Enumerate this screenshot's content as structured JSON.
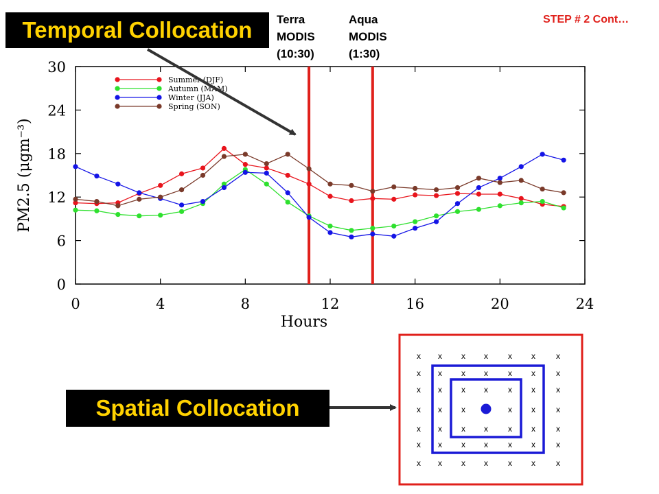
{
  "header": {
    "temporal_title": "Temporal Collocation",
    "spatial_title": "Spatial Collocation",
    "step": "STEP # 2 Cont…",
    "terra": [
      "Terra",
      "MODIS",
      "(10:30)"
    ],
    "aqua": [
      "Aqua",
      "MODIS",
      "(1:30)"
    ]
  },
  "chart_data": {
    "type": "line",
    "xlabel": "Hours",
    "ylabel": "PM2.5 (μgm⁻³)",
    "xlim": [
      0,
      24
    ],
    "ylim": [
      0,
      30
    ],
    "xticks": [
      0,
      4,
      8,
      12,
      16,
      20,
      24
    ],
    "yticks": [
      0,
      6,
      12,
      18,
      24,
      30
    ],
    "legend_position": "top-left",
    "x": [
      0,
      1,
      2,
      3,
      4,
      5,
      6,
      7,
      8,
      9,
      10,
      11,
      12,
      13,
      14,
      15,
      16,
      17,
      18,
      19,
      20,
      21,
      22,
      23
    ],
    "series": [
      {
        "name": "Summer (DJF)",
        "color": "#e8141c",
        "values": [
          11.2,
          11.1,
          11.2,
          12.5,
          13.6,
          15.2,
          16.0,
          18.7,
          16.5,
          16.0,
          15.0,
          13.8,
          12.1,
          11.5,
          11.8,
          11.7,
          12.3,
          12.2,
          12.5,
          12.4,
          12.4,
          11.8,
          11.0,
          10.7
        ]
      },
      {
        "name": "Autumn (MAM)",
        "color": "#2ee02e",
        "values": [
          10.2,
          10.1,
          9.6,
          9.4,
          9.5,
          10.0,
          11.1,
          13.8,
          15.8,
          13.8,
          11.3,
          9.4,
          8.0,
          7.4,
          7.7,
          8.0,
          8.6,
          9.4,
          10.0,
          10.3,
          10.8,
          11.2,
          11.4,
          10.5
        ]
      },
      {
        "name": "Winter (JJA)",
        "color": "#1414e6",
        "values": [
          16.2,
          14.9,
          13.8,
          12.6,
          11.8,
          10.9,
          11.4,
          13.3,
          15.4,
          15.3,
          12.6,
          9.2,
          7.1,
          6.5,
          6.9,
          6.6,
          7.7,
          8.6,
          11.1,
          13.3,
          14.6,
          16.2,
          17.9,
          17.1
        ]
      },
      {
        "name": "Spring (SON)",
        "color": "#7a3a2a",
        "values": [
          11.7,
          11.4,
          10.8,
          11.7,
          12.0,
          13.0,
          15.0,
          17.6,
          17.9,
          16.6,
          17.9,
          15.9,
          13.8,
          13.6,
          12.8,
          13.4,
          13.2,
          13.0,
          13.3,
          14.6,
          14.0,
          14.3,
          13.1,
          12.6
        ]
      }
    ],
    "vlines": [
      {
        "x": 11,
        "color": "#e0201b"
      },
      {
        "x": 14,
        "color": "#e0201b"
      }
    ]
  },
  "spatial_grid": {
    "marker": "x",
    "rows": 7,
    "cols": 7,
    "center_symbol": "●"
  }
}
